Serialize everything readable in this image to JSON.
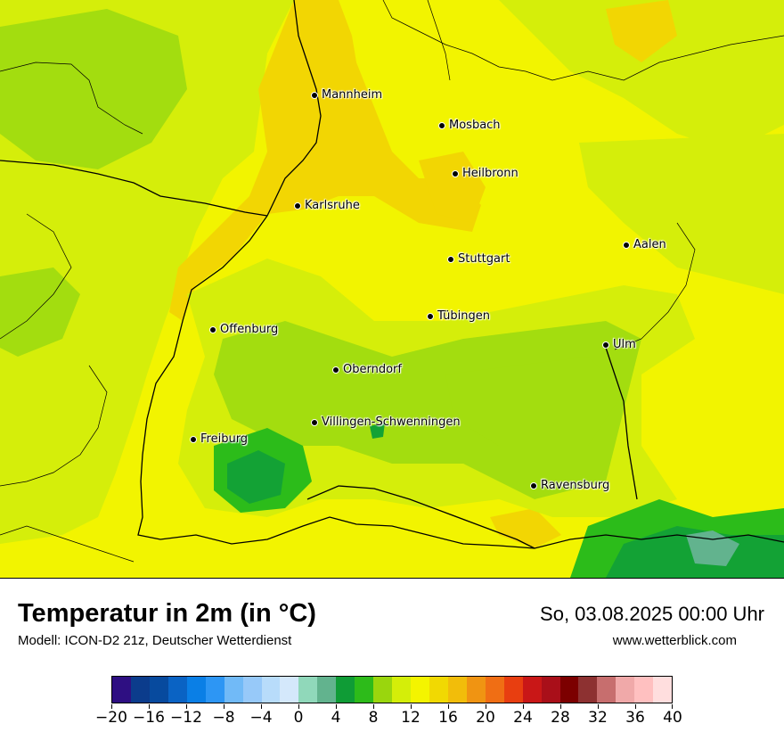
{
  "header": {
    "title": "Temperatur in 2m (in °C)",
    "subtitle": "Modell: ICON-D2 21z, Deutscher Wetterdienst",
    "datetime": "So, 03.08.2025 00:00 Uhr",
    "website": "www.wetterblick.com"
  },
  "cities": [
    {
      "name": "Mannheim"
    },
    {
      "name": "Mosbach"
    },
    {
      "name": "Heilbronn"
    },
    {
      "name": "Karlsruhe"
    },
    {
      "name": "Aalen"
    },
    {
      "name": "Stuttgart"
    },
    {
      "name": "Tübingen"
    },
    {
      "name": "Offenburg"
    },
    {
      "name": "Ulm"
    },
    {
      "name": "Oberndorf"
    },
    {
      "name": "Villingen-Schwenningen"
    },
    {
      "name": "Freiburg"
    },
    {
      "name": "Ravensburg"
    }
  ],
  "colorbar": {
    "tick_labels": [
      "−20",
      "−16",
      "−12",
      "−8",
      "−4",
      "0",
      "4",
      "8",
      "12",
      "16",
      "20",
      "24",
      "28",
      "32",
      "36",
      "40"
    ],
    "colors": [
      "#2e0f82",
      "#0b3c8c",
      "#074a9e",
      "#0a63c4",
      "#0a7fe6",
      "#2d96f4",
      "#71baf7",
      "#97c9f9",
      "#b8dcfa",
      "#d4e8fb",
      "#90d8ba",
      "#62b38e",
      "#0f9c36",
      "#2dbb1a",
      "#9ad60d",
      "#d4ee09",
      "#f4f400",
      "#f1d902",
      "#f2bd0a",
      "#f09412",
      "#f06e14",
      "#e83e10",
      "#c91717",
      "#a90f19",
      "#7c0000",
      "#8d3131",
      "#c76e6e",
      "#f0a9a9",
      "#ffc0c0",
      "#ffdede"
    ]
  },
  "palette": {
    "yellow": "#f2f400",
    "lime": "#d5ee0a",
    "green_light": "#a3dd0f",
    "green": "#2cbc1a",
    "green_dark": "#13a235",
    "orange_yellow": "#f2d603"
  }
}
